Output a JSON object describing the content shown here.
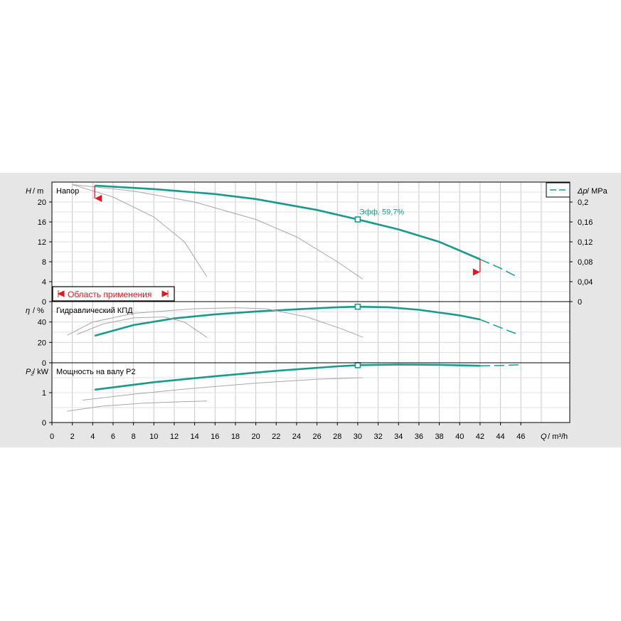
{
  "chart_data": [
    {
      "type": "line",
      "title": "Напор",
      "ylabel_symbol": "H",
      "ylabel_unit": "m",
      "ylim": [
        0,
        24
      ],
      "yticks": [
        0,
        4,
        8,
        12,
        16,
        20
      ],
      "right_axis": {
        "label_symbol": "Δp",
        "label_unit": "MPa",
        "ylim": [
          0,
          0.24
        ],
        "ticks": [
          "0",
          "0,04",
          "0,08",
          "0,12",
          "0,16",
          "0,2"
        ]
      },
      "series": [
        {
          "role": "main",
          "color": "#1a9a8a",
          "points": [
            [
              4.2,
              23.3
            ],
            [
              10,
              22.6
            ],
            [
              16,
              21.6
            ],
            [
              20,
              20.6
            ],
            [
              26,
              18.4
            ],
            [
              30,
              16.5
            ],
            [
              34,
              14.5
            ],
            [
              38,
              12.0
            ],
            [
              42,
              8.5
            ]
          ]
        },
        {
          "role": "extension",
          "color": "#1a9a8a",
          "dash": true,
          "points": [
            [
              42,
              8.5
            ],
            [
              44,
              6.7
            ],
            [
              45.8,
              4.8
            ]
          ]
        },
        {
          "role": "reference",
          "color": "#a8a8a8",
          "points": [
            [
              2,
              23.5
            ],
            [
              8,
              22.2
            ],
            [
              14,
              20.0
            ],
            [
              20,
              16.5
            ],
            [
              24,
              13.0
            ],
            [
              28,
              8.0
            ],
            [
              30.5,
              4.5
            ]
          ]
        },
        {
          "role": "reference",
          "color": "#a8a8a8",
          "points": [
            [
              2,
              23.5
            ],
            [
              6,
              21.0
            ],
            [
              10,
              17.0
            ],
            [
              13,
              12.0
            ],
            [
              15.2,
              5.0
            ]
          ]
        }
      ],
      "operating_point": {
        "q": 30,
        "h": 16.5,
        "label": "Эфф.  59,7%"
      },
      "application_range": {
        "label": "Область применения",
        "qmin": 4.2,
        "qmax": 42
      }
    },
    {
      "type": "line",
      "title": "Гидравлический КПД",
      "ylabel_symbol": "η",
      "ylabel_unit": "%",
      "ylim": [
        0,
        60
      ],
      "yticks": [
        0,
        20,
        40
      ],
      "series": [
        {
          "role": "main",
          "color": "#1a9a8a",
          "points": [
            [
              4.2,
              26.5
            ],
            [
              8,
              37
            ],
            [
              12,
              43.5
            ],
            [
              16,
              47.5
            ],
            [
              20,
              50.3
            ],
            [
              24,
              52.5
            ],
            [
              28,
              54.5
            ],
            [
              30,
              55
            ],
            [
              33,
              54.5
            ],
            [
              36,
              52
            ],
            [
              40,
              46.5
            ],
            [
              42,
              42.5
            ]
          ]
        },
        {
          "role": "extension",
          "color": "#1a9a8a",
          "dash": true,
          "points": [
            [
              42,
              42.5
            ],
            [
              44,
              34.5
            ],
            [
              45.8,
              27.5
            ]
          ]
        },
        {
          "role": "reference",
          "color": "#a8a8a8",
          "points": [
            [
              1.5,
              27
            ],
            [
              4,
              40
            ],
            [
              8,
              48.5
            ],
            [
              14,
              53
            ],
            [
              18,
              54
            ],
            [
              21,
              53
            ],
            [
              25,
              45
            ],
            [
              28.5,
              33
            ],
            [
              30.5,
              25
            ]
          ]
        },
        {
          "role": "reference",
          "color": "#a8a8a8",
          "points": [
            [
              2.5,
              28
            ],
            [
              5,
              38
            ],
            [
              8,
              44
            ],
            [
              11,
              45
            ],
            [
              13,
              40
            ],
            [
              15.2,
              25
            ]
          ]
        }
      ],
      "operating_point": {
        "q": 30,
        "value": 55
      }
    },
    {
      "type": "line",
      "title": "Мощность на валу P2",
      "ylabel_symbol": "P₂",
      "ylabel_unit": "kW",
      "ylim": [
        0,
        2.0
      ],
      "yticks": [
        0,
        1
      ],
      "series": [
        {
          "role": "main",
          "color": "#1a9a8a",
          "points": [
            [
              4.2,
              1.1
            ],
            [
              10,
              1.35
            ],
            [
              16,
              1.55
            ],
            [
              22,
              1.73
            ],
            [
              28,
              1.88
            ],
            [
              30,
              1.92
            ],
            [
              34,
              1.94
            ],
            [
              38,
              1.93
            ],
            [
              42,
              1.9
            ]
          ]
        },
        {
          "role": "extension",
          "color": "#1a9a8a",
          "dash": true,
          "points": [
            [
              42,
              1.9
            ],
            [
              44,
              1.91
            ],
            [
              45.8,
              1.93
            ]
          ]
        },
        {
          "role": "reference",
          "color": "#a8a8a8",
          "points": [
            [
              3,
              0.75
            ],
            [
              8,
              0.95
            ],
            [
              14,
              1.15
            ],
            [
              20,
              1.32
            ],
            [
              26,
              1.45
            ],
            [
              30.5,
              1.5
            ]
          ]
        },
        {
          "role": "reference",
          "color": "#a8a8a8",
          "points": [
            [
              1.5,
              0.38
            ],
            [
              5,
              0.55
            ],
            [
              9,
              0.65
            ],
            [
              13,
              0.7
            ],
            [
              15.2,
              0.72
            ]
          ]
        }
      ],
      "operating_point": {
        "q": 30,
        "value": 1.92
      }
    }
  ],
  "x_axis": {
    "label_symbol": "Q",
    "label_unit": "m³/h",
    "xlim": [
      0,
      50.8
    ],
    "ticks": [
      0,
      2,
      4,
      6,
      8,
      10,
      12,
      14,
      16,
      18,
      20,
      22,
      24,
      26,
      28,
      30,
      32,
      34,
      36,
      38,
      40,
      42,
      44,
      46
    ]
  },
  "legend": {
    "placement": "top-right",
    "line_style": "dashed",
    "color": "#1a9a8a"
  },
  "colors": {
    "main": "#1a9a8a",
    "reference": "#a8a8a8",
    "grid": "#c8c8c8",
    "marker": "#e8141e"
  }
}
